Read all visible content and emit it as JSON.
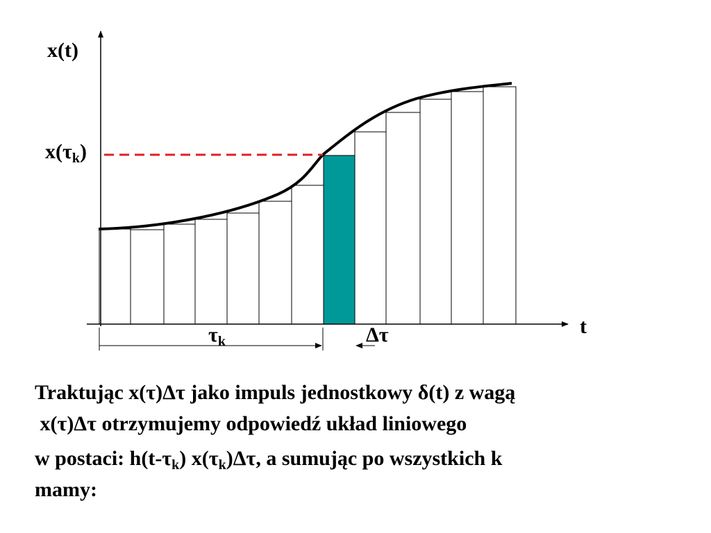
{
  "diagram": {
    "y_axis_label": "x(t)",
    "x_axis_label": "t",
    "level_label": [
      {
        "text": "x(τ"
      },
      {
        "sub": "k"
      },
      {
        "text": ")"
      }
    ],
    "tau_label": [
      {
        "text": "τ"
      },
      {
        "sub": "k"
      }
    ],
    "delta_label": "Δτ"
  },
  "text": {
    "lines": [
      [
        {
          "text": "Traktując x(τ)Δτ jako impuls jednostkowy δ(t) z wagą"
        }
      ],
      [
        {
          "text": " x(τ)Δτ otrzymujemy odpowiedź układ liniowego"
        }
      ],
      [
        {
          "text": "w postaci: h(t-τ"
        },
        {
          "sub": "k"
        },
        {
          "text": ") x(τ"
        },
        {
          "sub": "k"
        },
        {
          "text": ")Δτ, a sumując po wszystkich k"
        }
      ],
      [
        {
          "text": "mamy:"
        }
      ]
    ]
  }
}
